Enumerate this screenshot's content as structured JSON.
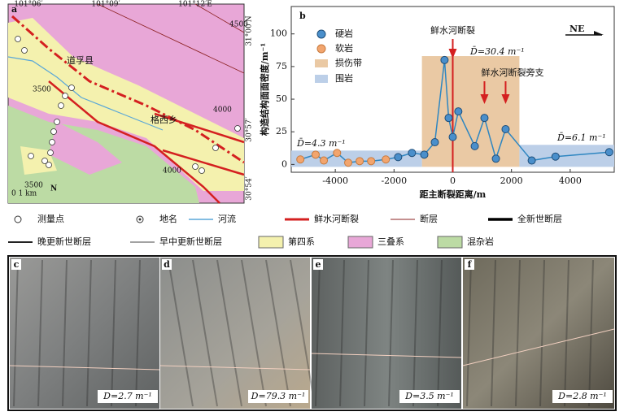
{
  "map": {
    "label": "a",
    "lon_labels": [
      "101°06′",
      "101°09′",
      "101°12′E"
    ],
    "lat_labels": [
      "31°00′N",
      "30°57′",
      "30°54′"
    ],
    "places": [
      "道孚县",
      "格西乡"
    ],
    "scale": "0  1 km",
    "north": "N",
    "contours": [
      "4500",
      "3500",
      "4000",
      "3500",
      "4000"
    ]
  },
  "chart_data": {
    "type": "scatter",
    "panel_label": "b",
    "x_label": "距主断裂距离/m",
    "y_label": "构造结构面面密度/m⁻¹",
    "xlim": [
      -5500,
      5500
    ],
    "ylim": [
      -6,
      121
    ],
    "xticks": [
      -4000,
      -2000,
      0,
      2000,
      4000
    ],
    "yticks": [
      0,
      25,
      50,
      75,
      100
    ],
    "series": [
      {
        "name": "硬岩",
        "color": "#4a8fcb",
        "x": [
          -1860,
          -1390,
          -970,
          -610,
          -280,
          -140,
          0,
          190,
          750,
          1080,
          1470,
          1800,
          2690,
          3500,
          5330
        ],
        "values": [
          5.6,
          8.8,
          7.5,
          17,
          80,
          35.6,
          21,
          40.6,
          14,
          35.6,
          4.4,
          27,
          3,
          6,
          9.4
        ]
      },
      {
        "name": "软岩",
        "color": "#f2a56e",
        "x": [
          -5190,
          -4670,
          -4390,
          -3940,
          -3560,
          -3170,
          -2780,
          -2280
        ],
        "values": [
          3.8,
          7.5,
          3,
          8.8,
          1.3,
          2.5,
          2.5,
          3.8
        ]
      }
    ],
    "line_color": "#2e86c1",
    "zones": [
      {
        "name": "损伤带",
        "color": "#eac9a4",
        "spans": [
          {
            "x": [
              -1050,
              2270
            ],
            "top": 83
          }
        ]
      },
      {
        "name": "围岩",
        "color": "#bccfe8",
        "spans": [
          {
            "x": [
              -5500,
              -1050
            ],
            "top": 10.6
          },
          {
            "x": [
              2270,
              5500
            ],
            "top": 15
          }
        ]
      }
    ],
    "main_fault": {
      "label": "鲜水河断裂",
      "x": 0
    },
    "branch_fault": {
      "label": "鲜水河断裂旁支",
      "x": [
        1080,
        1800
      ]
    },
    "means": [
      "D̄=4.3 m⁻¹",
      "D̄=30.4 m⁻¹",
      "D̄=6.1 m⁻¹"
    ],
    "direction": "NE"
  },
  "legend": [
    "测量点",
    "地名",
    "河流",
    "鲜水河断裂",
    "断层",
    "全新世断层",
    "晚更新世断层",
    "早中更新世断层",
    "第四系",
    "三叠系",
    "混杂岩"
  ],
  "photos": [
    {
      "label": "c",
      "caption": "D=2.7 m⁻¹"
    },
    {
      "label": "d",
      "caption": "D=79.3 m⁻¹"
    },
    {
      "label": "e",
      "caption": "D=3.5 m⁻¹"
    },
    {
      "label": "f",
      "caption": "D=2.8 m⁻¹"
    }
  ]
}
